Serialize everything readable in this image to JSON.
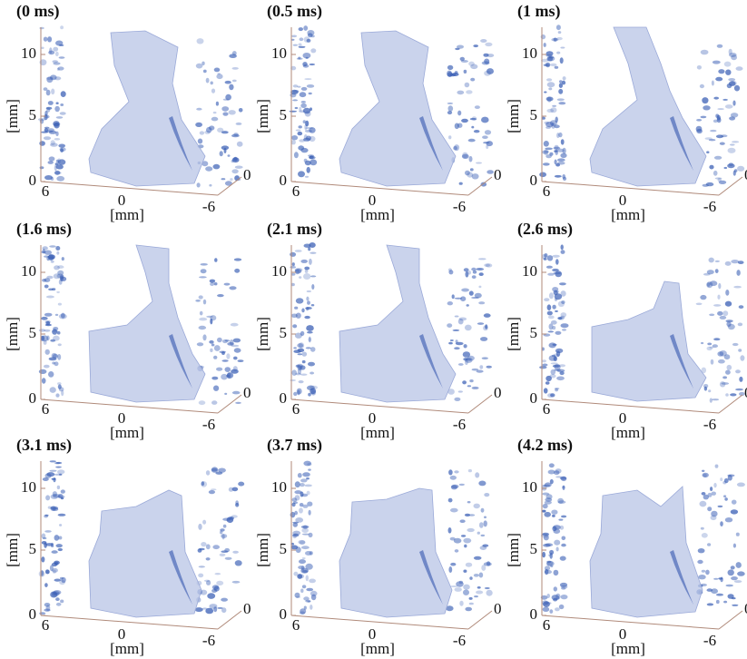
{
  "panels": [
    {
      "label": "(0 ms)"
    },
    {
      "label": "(0.5 ms)"
    },
    {
      "label": "(1 ms)"
    },
    {
      "label": "(1.6 ms)"
    },
    {
      "label": "(2.1 ms)"
    },
    {
      "label": "(2.6 ms)"
    },
    {
      "label": "(3.1 ms)"
    },
    {
      "label": "(3.7 ms)"
    },
    {
      "label": "(4.2 ms)"
    }
  ],
  "axes": {
    "vertical_label": "[mm]",
    "vertical_ticks": [
      "10",
      "5",
      "0"
    ],
    "horizontal_label": "[mm]",
    "horizontal_ticks": [
      "6",
      "0",
      "-6"
    ],
    "depth_tick": "0"
  }
}
